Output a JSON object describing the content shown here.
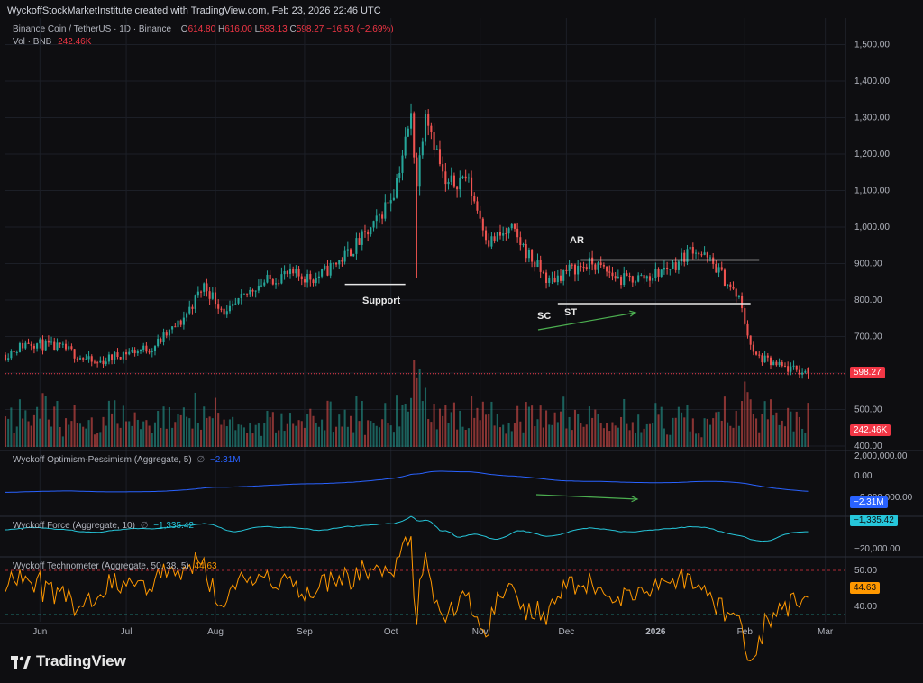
{
  "header": {
    "credit": "WyckoffStockMarketInstitute created with TradingView.com, Feb 23, 2026 22:46 UTC"
  },
  "legend": {
    "symbol": "Binance Coin / TetherUS · 1D · Binance",
    "o_label": "O",
    "o_value": "614.80",
    "h_label": "H",
    "h_value": "616.00",
    "l_label": "L",
    "l_value": "583.13",
    "c_label": "C",
    "c_value": "598.27",
    "change": "−16.53 (−2.69%)",
    "vol_label": "Vol · BNB",
    "vol_value": "242.46K"
  },
  "indicators": {
    "optimism_title": "Wyckoff Optimism-Pessimism (Aggregate, 5)",
    "optimism_value": "−2.31M",
    "force_title": "Wyckoff Force (Aggregate, 10)",
    "force_value": "−1,335.42",
    "techno_title": "Wyckoff Technometer (Aggregate, 50, 38, 5)",
    "techno_value": "44.63"
  },
  "annotations": {
    "support": "Support",
    "ar": "AR",
    "sc": "SC",
    "st": "ST"
  },
  "tags": {
    "last_price": "598.27",
    "volume": "242.46K",
    "optimism": "−2.31M",
    "force": "−1,335.42",
    "techno": "44.63"
  },
  "colors": {
    "up": "#26a69a",
    "down": "#ef5350",
    "optimism_line": "#2962ff",
    "force_line": "#26c6da",
    "techno_line": "#ff9800",
    "annotation_arrow": "#4caf50"
  },
  "price_axis_labels": [
    "1,500.00",
    "1,400.00",
    "1,300.00",
    "1,200.00",
    "1,100.00",
    "1,000.00",
    "900.00",
    "800.00",
    "700.00",
    "500.00",
    "400.00"
  ],
  "optimism_axis_labels": [
    "2,000,000.00",
    "0.00",
    "−2,000,000.00"
  ],
  "force_axis_labels": [
    "−20,000.00"
  ],
  "techno_axis_labels": [
    "50.00",
    "40.00"
  ],
  "time_axis_labels": [
    "Jun",
    "Jul",
    "Aug",
    "Sep",
    "Oct",
    "Nov",
    "Dec",
    "2026",
    "Jan",
    "Feb",
    "Mar"
  ],
  "footer": {
    "brand": "TradingView"
  },
  "chart_data": {
    "type": "candlestick",
    "title": "",
    "xlabel": "",
    "ylabel": "",
    "ylim": [
      400,
      1550
    ],
    "last_price": 598.27,
    "anchors": [
      {
        "date": "2025-05-20",
        "close": 650
      },
      {
        "date": "2025-05-28",
        "close": 685
      },
      {
        "date": "2025-06-10",
        "close": 665
      },
      {
        "date": "2025-06-20",
        "close": 625
      },
      {
        "date": "2025-06-30",
        "close": 655
      },
      {
        "date": "2025-07-10",
        "close": 670
      },
      {
        "date": "2025-07-20",
        "close": 740
      },
      {
        "date": "2025-07-28",
        "close": 840
      },
      {
        "date": "2025-08-05",
        "close": 760
      },
      {
        "date": "2025-08-15",
        "close": 840
      },
      {
        "date": "2025-08-25",
        "close": 870
      },
      {
        "date": "2025-09-05",
        "close": 860
      },
      {
        "date": "2025-09-15",
        "close": 920
      },
      {
        "date": "2025-09-25",
        "close": 1000
      },
      {
        "date": "2025-10-02",
        "close": 1100
      },
      {
        "date": "2025-10-08",
        "close": 1300
      },
      {
        "date": "2025-10-10",
        "close": 1120
      },
      {
        "date": "2025-10-13",
        "close": 1330
      },
      {
        "date": "2025-10-20",
        "close": 1110
      },
      {
        "date": "2025-10-27",
        "close": 1140
      },
      {
        "date": "2025-11-04",
        "close": 960
      },
      {
        "date": "2025-11-12",
        "close": 990
      },
      {
        "date": "2025-11-20",
        "close": 900
      },
      {
        "date": "2025-11-25",
        "close": 850
      },
      {
        "date": "2025-12-01",
        "close": 880
      },
      {
        "date": "2025-12-10",
        "close": 900
      },
      {
        "date": "2025-12-20",
        "close": 855
      },
      {
        "date": "2025-12-30",
        "close": 865
      },
      {
        "date": "2026-01-08",
        "close": 900
      },
      {
        "date": "2026-01-14",
        "close": 945
      },
      {
        "date": "2026-01-22",
        "close": 890
      },
      {
        "date": "2026-01-30",
        "close": 800
      },
      {
        "date": "2026-02-04",
        "close": 650
      },
      {
        "date": "2026-02-12",
        "close": 620
      },
      {
        "date": "2026-02-23",
        "close": 598.27
      }
    ],
    "horizontal_lines": [
      {
        "label": "AR",
        "y": 910,
        "from": "2025-12-06",
        "to": "2026-02-06"
      },
      {
        "label": "SC",
        "y": 790,
        "from": "2025-11-28",
        "to": "2026-02-03"
      },
      {
        "label": "Support",
        "y": 843,
        "from": "2025-09-15",
        "to": "2025-10-06"
      }
    ]
  }
}
